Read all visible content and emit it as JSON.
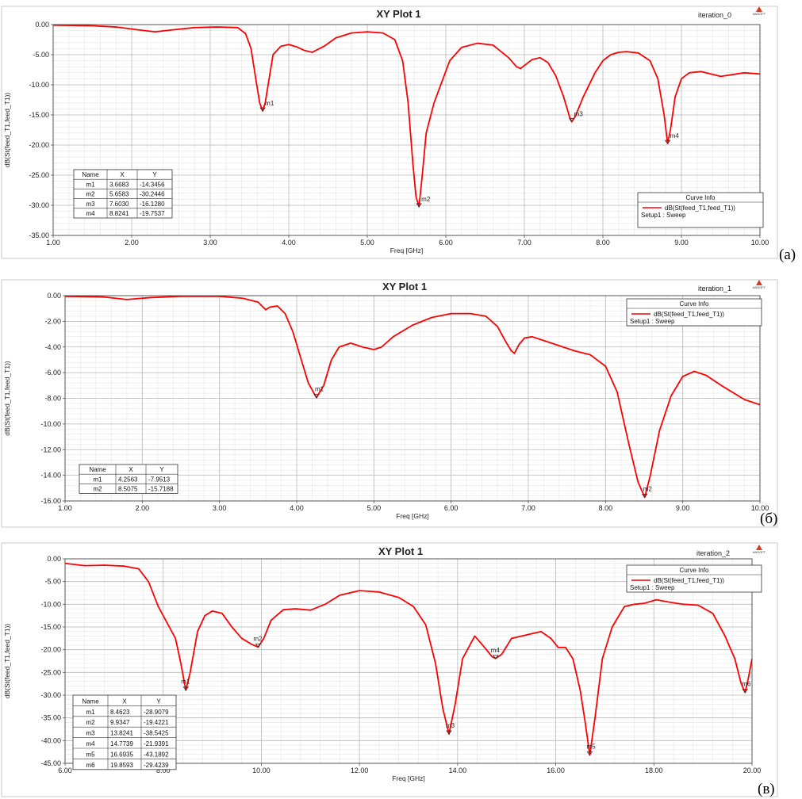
{
  "chart_data": [
    {
      "type": "line",
      "panel_label": "(a)",
      "title": "XY Plot 1",
      "iteration_label": "iteration_0",
      "logo_text": "ANSOFT",
      "xlabel": "Freq [GHz]",
      "ylabel": "dB(St(feed_T1,feed_T1))",
      "xlim": [
        1.0,
        10.0
      ],
      "ylim": [
        -35.0,
        0.0
      ],
      "xticks": [
        "1.00",
        "2.00",
        "3.00",
        "4.00",
        "5.00",
        "6.00",
        "7.00",
        "8.00",
        "9.00",
        "10.00"
      ],
      "yticks": [
        "0.00",
        "-5.00",
        "-10.00",
        "-15.00",
        "-20.00",
        "-25.00",
        "-30.00",
        "-35.00"
      ],
      "grid": true,
      "curve_color": "#ff0000",
      "series": [
        {
          "name": "dB(St(feed_T1,feed_T1))",
          "x": [
            1.0,
            1.5,
            1.8,
            2.1,
            2.3,
            2.5,
            2.8,
            3.1,
            3.35,
            3.45,
            3.52,
            3.58,
            3.63,
            3.6683,
            3.7,
            3.75,
            3.8,
            3.9,
            4.0,
            4.1,
            4.2,
            4.3,
            4.45,
            4.6,
            4.8,
            5.0,
            5.2,
            5.35,
            5.45,
            5.52,
            5.58,
            5.62,
            5.6583,
            5.7,
            5.75,
            5.85,
            5.95,
            6.05,
            6.2,
            6.4,
            6.6,
            6.8,
            6.9,
            6.95,
            7.0,
            7.1,
            7.2,
            7.3,
            7.4,
            7.5,
            7.58,
            7.603,
            7.65,
            7.75,
            7.9,
            8.0,
            8.1,
            8.2,
            8.3,
            8.45,
            8.6,
            8.7,
            8.78,
            8.8241,
            8.86,
            8.92,
            9.0,
            9.1,
            9.25,
            9.5,
            9.8,
            10.0
          ],
          "y": [
            -0.1,
            -0.2,
            -0.4,
            -0.9,
            -1.2,
            -0.9,
            -0.5,
            -0.4,
            -0.5,
            -1.5,
            -4.0,
            -9.0,
            -13.0,
            -14.3456,
            -13.0,
            -9.0,
            -5.0,
            -3.6,
            -3.3,
            -3.7,
            -4.3,
            -4.6,
            -3.6,
            -2.2,
            -1.4,
            -1.2,
            -1.4,
            -2.5,
            -6.0,
            -13.0,
            -23.0,
            -28.5,
            -30.2446,
            -25.0,
            -18.0,
            -13.0,
            -9.5,
            -6.0,
            -3.8,
            -3.1,
            -3.4,
            -5.5,
            -7.0,
            -7.3,
            -6.8,
            -5.8,
            -5.5,
            -6.3,
            -8.5,
            -12.0,
            -15.5,
            -16.128,
            -15.2,
            -12.0,
            -8.0,
            -6.0,
            -5.0,
            -4.6,
            -4.5,
            -4.7,
            -6.0,
            -9.0,
            -15.0,
            -19.7537,
            -17.5,
            -12.0,
            -9.0,
            -8.0,
            -7.8,
            -8.6,
            -8.0,
            -8.2
          ]
        }
      ],
      "markers": [
        {
          "name": "m1",
          "x": "3.6683",
          "y": "-14.3456",
          "xv": 3.6683,
          "yv": -14.3456
        },
        {
          "name": "m2",
          "x": "5.6583",
          "y": "-30.2446",
          "xv": 5.6583,
          "yv": -30.2446
        },
        {
          "name": "m3",
          "x": "7.6030",
          "y": "-16.1280",
          "xv": 7.603,
          "yv": -16.128
        },
        {
          "name": "m4",
          "x": "8.8241",
          "y": "-19.7537",
          "xv": 8.8241,
          "yv": -19.7537
        }
      ],
      "marker_table_headers": [
        "Name",
        "X",
        "Y"
      ],
      "legend": {
        "title": "Curve Info",
        "entry": "dB(St(feed_T1,feed_T1))",
        "setup": "Setup1 : Sweep",
        "placement": "bottom-right"
      }
    },
    {
      "type": "line",
      "panel_label": "(б)",
      "title": "XY Plot 1",
      "iteration_label": "iteration_1",
      "logo_text": "ANSOFT",
      "xlabel": "Freq [GHz]",
      "ylabel": "dB(St(feed_T1,feed_T1))",
      "xlim": [
        1.0,
        10.0
      ],
      "ylim": [
        -16.0,
        0.0
      ],
      "xticks": [
        "1.00",
        "2.00",
        "3.00",
        "4.00",
        "5.00",
        "6.00",
        "7.00",
        "8.00",
        "9.00",
        "10.00"
      ],
      "yticks": [
        "0.00",
        "-2.00",
        "-4.00",
        "-6.00",
        "-8.00",
        "-10.00",
        "-12.00",
        "-14.00",
        "-16.00"
      ],
      "grid": true,
      "curve_color": "#ff0000",
      "series": [
        {
          "name": "dB(St(feed_T1,feed_T1))",
          "x": [
            1.0,
            1.5,
            1.8,
            2.1,
            2.5,
            3.0,
            3.3,
            3.5,
            3.6,
            3.65,
            3.75,
            3.85,
            3.95,
            4.05,
            4.15,
            4.2563,
            4.35,
            4.45,
            4.55,
            4.7,
            4.85,
            5.0,
            5.1,
            5.25,
            5.5,
            5.75,
            6.0,
            6.25,
            6.45,
            6.6,
            6.7,
            6.78,
            6.82,
            6.88,
            6.95,
            7.05,
            7.2,
            7.4,
            7.6,
            7.8,
            8.0,
            8.15,
            8.3,
            8.42,
            8.5075,
            8.58,
            8.7,
            8.85,
            9.0,
            9.15,
            9.3,
            9.5,
            9.8,
            10.0
          ],
          "y": [
            -0.05,
            -0.1,
            -0.3,
            -0.15,
            -0.05,
            -0.05,
            -0.2,
            -0.5,
            -1.1,
            -0.9,
            -0.8,
            -1.4,
            -2.8,
            -4.8,
            -6.8,
            -7.9513,
            -7.0,
            -5.0,
            -4.0,
            -3.7,
            -4.0,
            -4.2,
            -4.0,
            -3.2,
            -2.3,
            -1.7,
            -1.4,
            -1.4,
            -1.6,
            -2.4,
            -3.5,
            -4.3,
            -4.5,
            -3.8,
            -3.3,
            -3.2,
            -3.5,
            -3.9,
            -4.3,
            -4.6,
            -5.5,
            -7.5,
            -11.5,
            -14.5,
            -15.7188,
            -14.0,
            -10.5,
            -7.8,
            -6.3,
            -5.9,
            -6.2,
            -7.0,
            -8.1,
            -8.5
          ]
        }
      ],
      "markers": [
        {
          "name": "m1",
          "x": "4.2563",
          "y": "-7.9513",
          "xv": 4.2563,
          "yv": -7.9513
        },
        {
          "name": "m2",
          "x": "8.5075",
          "y": "-15.7188",
          "xv": 8.5075,
          "yv": -15.7188
        }
      ],
      "marker_table_headers": [
        "Name",
        "X",
        "Y"
      ],
      "legend": {
        "title": "Curve Info",
        "entry": "dB(St(feed_T1,feed_T1))",
        "setup": "Setup1 : Sweep",
        "placement": "top-right"
      }
    },
    {
      "type": "line",
      "panel_label": "(в)",
      "title": "XY Plot 1",
      "iteration_label": "iteration_2",
      "logo_text": "ANSOFT",
      "xlabel": "Freq [GHz]",
      "ylabel": "dB(St(feed_T1,feed_T1))",
      "xlim": [
        6.0,
        20.0
      ],
      "ylim": [
        -45.0,
        0.0
      ],
      "xticks": [
        "6.00",
        "8.00",
        "10.00",
        "12.00",
        "14.00",
        "16.00",
        "18.00",
        "20.00"
      ],
      "yticks": [
        "0.00",
        "-5.00",
        "-10.00",
        "-15.00",
        "-20.00",
        "-25.00",
        "-30.00",
        "-35.00",
        "-40.00",
        "-45.00"
      ],
      "grid": true,
      "curve_color": "#ff0000",
      "series": [
        {
          "name": "dB(St(feed_T1,feed_T1))",
          "x": [
            6.0,
            6.4,
            6.8,
            7.2,
            7.5,
            7.7,
            7.9,
            8.1,
            8.25,
            8.35,
            8.4623,
            8.55,
            8.7,
            8.85,
            9.0,
            9.2,
            9.4,
            9.6,
            9.8,
            9.9347,
            10.05,
            10.2,
            10.45,
            10.7,
            11.0,
            11.3,
            11.6,
            12.0,
            12.4,
            12.8,
            13.1,
            13.35,
            13.55,
            13.7,
            13.8241,
            13.95,
            14.1,
            14.35,
            14.55,
            14.7,
            14.7739,
            14.9,
            15.1,
            15.3,
            15.5,
            15.7,
            15.9,
            16.05,
            16.2,
            16.35,
            16.5,
            16.6,
            16.6935,
            16.8,
            16.95,
            17.15,
            17.4,
            17.6,
            17.8,
            18.05,
            18.3,
            18.6,
            18.9,
            19.2,
            19.45,
            19.65,
            19.78,
            19.8593,
            19.93,
            20.0
          ],
          "y": [
            -1.0,
            -1.5,
            -1.4,
            -1.6,
            -2.2,
            -5.0,
            -10.5,
            -14.5,
            -17.5,
            -22.5,
            -28.9079,
            -25.0,
            -16.0,
            -12.5,
            -11.5,
            -12.0,
            -15.0,
            -17.5,
            -18.8,
            -19.4221,
            -17.5,
            -13.5,
            -11.2,
            -11.0,
            -11.3,
            -10.0,
            -8.0,
            -7.0,
            -7.3,
            -8.5,
            -10.5,
            -14.5,
            -23.0,
            -33.0,
            -38.5425,
            -32.0,
            -22.0,
            -17.0,
            -19.5,
            -21.5,
            -21.9391,
            -21.0,
            -17.5,
            -17.0,
            -16.5,
            -16.0,
            -17.5,
            -19.5,
            -19.5,
            -22.0,
            -29.0,
            -36.0,
            -43.1892,
            -35.0,
            -22.0,
            -15.0,
            -10.5,
            -10.0,
            -9.8,
            -9.0,
            -9.5,
            -10.0,
            -10.2,
            -12.0,
            -17.0,
            -22.0,
            -27.5,
            -29.4239,
            -26.0,
            -22.0
          ]
        }
      ],
      "markers": [
        {
          "name": "m1",
          "x": "8.4623",
          "y": "-28.9079",
          "xv": 8.4623,
          "yv": -28.9079
        },
        {
          "name": "m2",
          "x": "9.9347",
          "y": "-19.4221",
          "xv": 9.9347,
          "yv": -19.4221
        },
        {
          "name": "m3",
          "x": "13.8241",
          "y": "-38.5425",
          "xv": 13.8241,
          "yv": -38.5425
        },
        {
          "name": "m4",
          "x": "14.7739",
          "y": "-21.9391",
          "xv": 14.7739,
          "yv": -21.9391
        },
        {
          "name": "m5",
          "x": "16.6935",
          "y": "-43.1892",
          "xv": 16.6935,
          "yv": -43.1892
        },
        {
          "name": "m6",
          "x": "19.8593",
          "y": "-29.4239",
          "xv": 19.8593,
          "yv": -29.4239
        }
      ],
      "marker_table_headers": [
        "Name",
        "X",
        "Y"
      ],
      "legend": {
        "title": "Curve Info",
        "entry": "dB(St(feed_T1,feed_T1))",
        "setup": "Setup1 : Sweep",
        "placement": "top-right"
      }
    }
  ]
}
